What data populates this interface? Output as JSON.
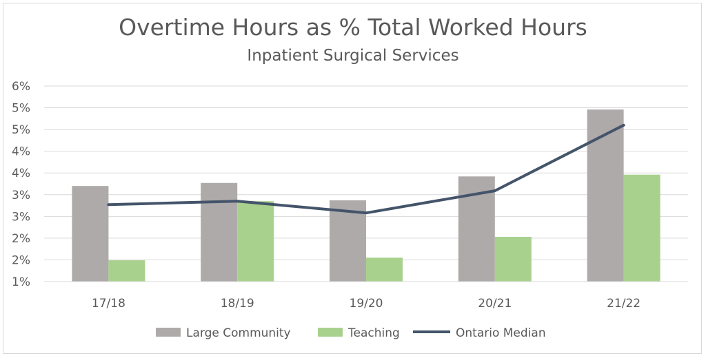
{
  "chart_data": {
    "type": "bar",
    "title": "Overtime Hours as % Total Worked Hours",
    "subtitle": "Inpatient Surgical Services",
    "categories": [
      "17/18",
      "18/19",
      "19/20",
      "20/21",
      "21/22"
    ],
    "y_tick_labels": [
      "1%",
      "2%",
      "2%",
      "3%",
      "3%",
      "4%",
      "4%",
      "5%",
      "5%",
      "6%"
    ],
    "ylim": [
      1.0,
      5.5
    ],
    "grid": true,
    "legend_position": "bottom",
    "series": [
      {
        "name": "Large Community",
        "type": "bar",
        "color": "#aeaaaa",
        "values": [
          3.2,
          3.27,
          2.87,
          3.42,
          4.96
        ]
      },
      {
        "name": "Teaching",
        "type": "bar",
        "color": "#a9d18e",
        "values": [
          1.49,
          2.85,
          1.55,
          2.03,
          3.46
        ]
      },
      {
        "name": "Ontario Median",
        "type": "line",
        "color": "#44546a",
        "values": [
          2.77,
          2.85,
          2.58,
          3.09,
          4.6
        ]
      }
    ]
  }
}
